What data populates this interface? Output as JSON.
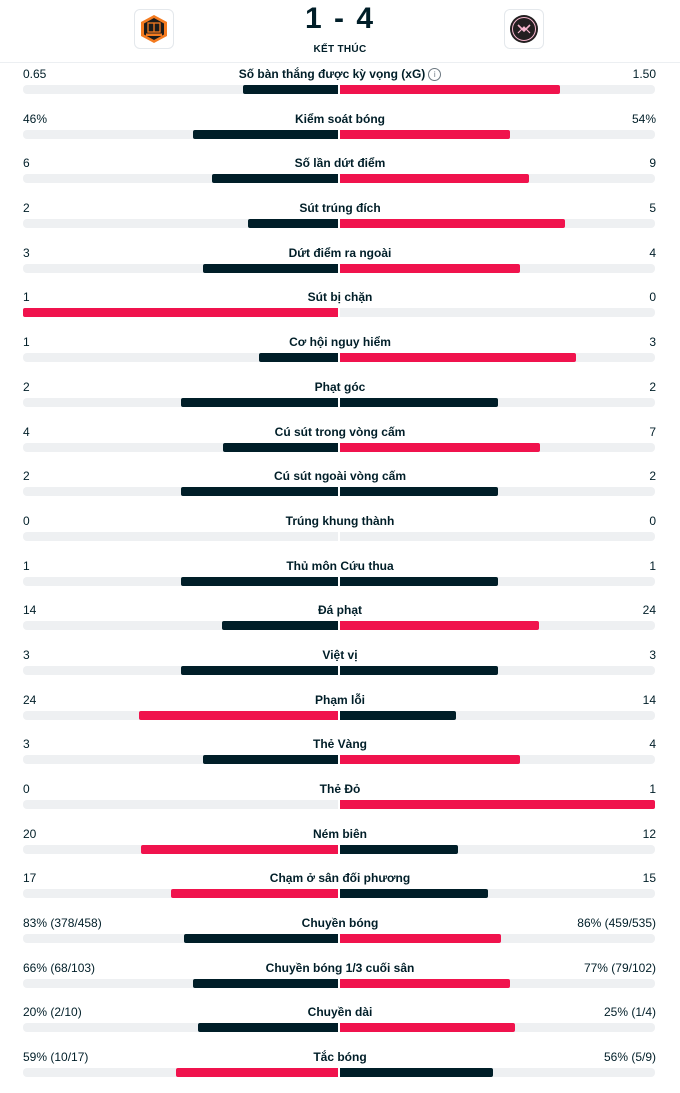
{
  "match": {
    "score": "1 - 4",
    "status": "KẾT THÚC",
    "home_logo_icon": "houston-dynamo-crest-icon",
    "away_logo_icon": "inter-miami-crest-icon"
  },
  "colors": {
    "dark": "#001e28",
    "red": "#f0134d",
    "track": "#eef0f2"
  },
  "stats": [
    {
      "label": "Số bàn thắng được kỳ vọng (xG)",
      "home": "0.65",
      "away": "1.50",
      "home_share": 0.302,
      "away_share": 0.698,
      "info": true
    },
    {
      "label": "Kiểm soát bóng",
      "home": "46%",
      "away": "54%",
      "home_share": 0.46,
      "away_share": 0.54
    },
    {
      "label": "Số lần dứt điểm",
      "home": "6",
      "away": "9",
      "home_share": 0.4,
      "away_share": 0.6
    },
    {
      "label": "Sút trúng đích",
      "home": "2",
      "away": "5",
      "home_share": 0.286,
      "away_share": 0.714
    },
    {
      "label": "Dứt điểm ra ngoài",
      "home": "3",
      "away": "4",
      "home_share": 0.429,
      "away_share": 0.571
    },
    {
      "label": "Sút bị chặn",
      "home": "1",
      "away": "0",
      "home_share": 1.0,
      "away_share": 0.0
    },
    {
      "label": "Cơ hội nguy hiểm",
      "home": "1",
      "away": "3",
      "home_share": 0.25,
      "away_share": 0.75
    },
    {
      "label": "Phạt góc",
      "home": "2",
      "away": "2",
      "home_share": 0.5,
      "away_share": 0.5
    },
    {
      "label": "Cú sút trong vòng cấm",
      "home": "4",
      "away": "7",
      "home_share": 0.364,
      "away_share": 0.636
    },
    {
      "label": "Cú sút ngoài vòng cấm",
      "home": "2",
      "away": "2",
      "home_share": 0.5,
      "away_share": 0.5
    },
    {
      "label": "Trúng khung thành",
      "home": "0",
      "away": "0",
      "home_share": 0,
      "away_share": 0
    },
    {
      "label": "Thủ môn Cứu thua",
      "home": "1",
      "away": "1",
      "home_share": 0.5,
      "away_share": 0.5
    },
    {
      "label": "Đá phạt",
      "home": "14",
      "away": "24",
      "home_share": 0.368,
      "away_share": 0.632
    },
    {
      "label": "Việt vị",
      "home": "3",
      "away": "3",
      "home_share": 0.5,
      "away_share": 0.5
    },
    {
      "label": "Phạm lỗi",
      "home": "24",
      "away": "14",
      "home_share": 0.632,
      "away_share": 0.368
    },
    {
      "label": "Thẻ Vàng",
      "home": "3",
      "away": "4",
      "home_share": 0.429,
      "away_share": 0.571
    },
    {
      "label": "Thẻ Đỏ",
      "home": "0",
      "away": "1",
      "home_share": 0.0,
      "away_share": 1.0
    },
    {
      "label": "Ném biên",
      "home": "20",
      "away": "12",
      "home_share": 0.625,
      "away_share": 0.375
    },
    {
      "label": "Chạm ở sân đối phương",
      "home": "17",
      "away": "15",
      "home_share": 0.531,
      "away_share": 0.469
    },
    {
      "label": "Chuyền bóng",
      "home": "83% (378/458)",
      "away": "86% (459/535)",
      "home_share": 0.49,
      "away_share": 0.51
    },
    {
      "label": "Chuyền bóng 1/3 cuối sân",
      "home": "66% (68/103)",
      "away": "77% (79/102)",
      "home_share": 0.46,
      "away_share": 0.54
    },
    {
      "label": "Chuyền dài",
      "home": "20% (2/10)",
      "away": "25% (1/4)",
      "home_share": 0.444,
      "away_share": 0.556
    },
    {
      "label": "Tắc bóng",
      "home": "59% (10/17)",
      "away": "56% (5/9)",
      "home_share": 0.513,
      "away_share": 0.487
    }
  ]
}
